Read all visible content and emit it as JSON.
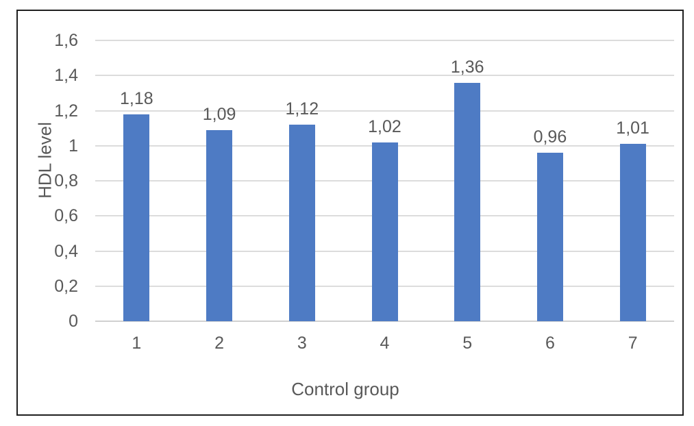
{
  "chart_data": {
    "type": "bar",
    "categories": [
      "1",
      "2",
      "3",
      "4",
      "5",
      "6",
      "7"
    ],
    "values": [
      1.18,
      1.09,
      1.12,
      1.02,
      1.36,
      0.96,
      1.01
    ],
    "data_labels": [
      "1,18",
      "1,09",
      "1,12",
      "1,02",
      "1,36",
      "0,96",
      "1,01"
    ],
    "title": "",
    "xlabel": "Control group",
    "ylabel": "HDL level",
    "ylim": [
      0,
      1.6
    ],
    "ytick_interval": 0.2,
    "ytick_labels": [
      "0",
      "0,2",
      "0,4",
      "0,6",
      "0,8",
      "1",
      "1,2",
      "1,4",
      "1,6"
    ],
    "decimal_separator": ",",
    "grid": true,
    "legend": "none",
    "colors": {
      "bar": "#4e7bc4",
      "gridline": "#dcdcdc",
      "axis_line": "#d0d0d0",
      "text": "#595959",
      "frame_border": "#1f1f1f",
      "background": "#ffffff"
    }
  }
}
